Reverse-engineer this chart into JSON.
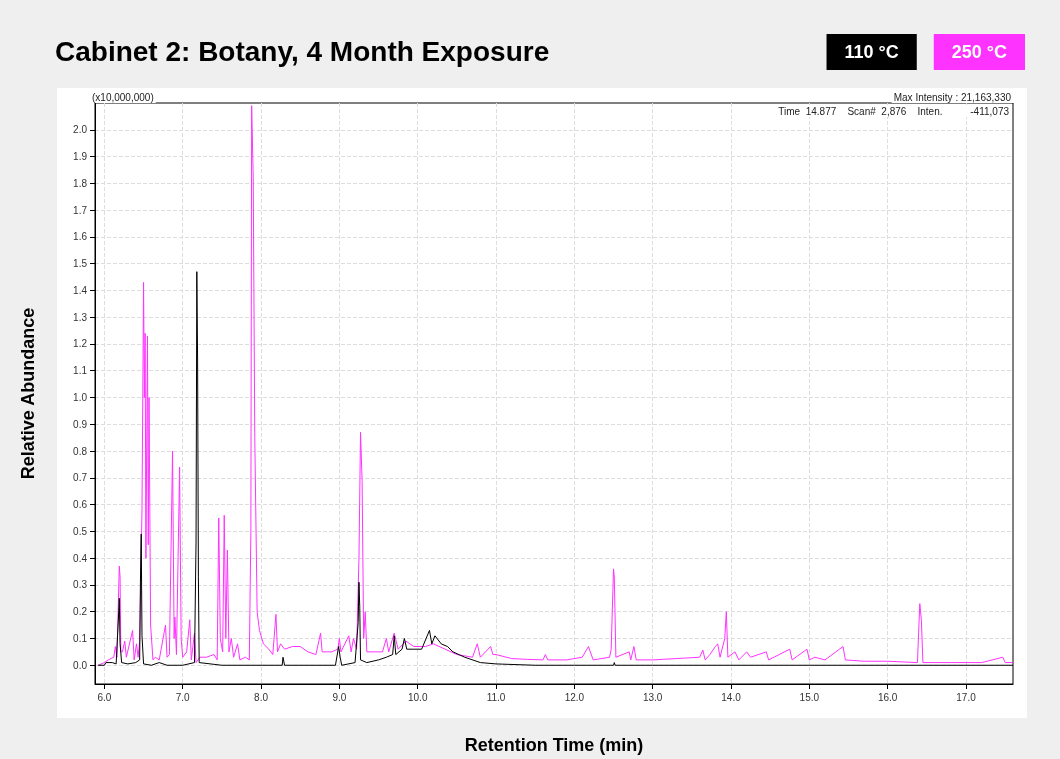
{
  "chart_data": {
    "type": "line",
    "title": "Cabinet 2: Botany, 4 Month Exposure",
    "xlabel": "Retention Time (min)",
    "ylabel": "Relative Abundance",
    "annotations": [
      "(x10,000,000)",
      "Max Intensity : 21,163,330",
      "Time  14.877    Scan#  2,876    Inten.          -411,073"
    ],
    "xlim": [
      5.88,
      17.6
    ],
    "ylim": [
      -0.07,
      2.1
    ],
    "xticks": [
      {
        "value": 6,
        "label": "6.0"
      },
      {
        "value": 7,
        "label": "7.0"
      },
      {
        "value": 8,
        "label": "8.0"
      },
      {
        "value": 9,
        "label": "9.0"
      },
      {
        "value": 10,
        "label": "10.0"
      },
      {
        "value": 11,
        "label": "11.0"
      },
      {
        "value": 12,
        "label": "12.0"
      },
      {
        "value": 13,
        "label": "13.0"
      },
      {
        "value": 14,
        "label": "14.0"
      },
      {
        "value": 15,
        "label": "15.0"
      },
      {
        "value": 16,
        "label": "16.0"
      },
      {
        "value": 17,
        "label": "17.0"
      }
    ],
    "yticks": [
      {
        "value": 0,
        "label": "0.0"
      },
      {
        "value": 0.1,
        "label": "0.1"
      },
      {
        "value": 0.2,
        "label": "0.2"
      },
      {
        "value": 0.3,
        "label": "0.3"
      },
      {
        "value": 0.4,
        "label": "0.4"
      },
      {
        "value": 0.5,
        "label": "0.5"
      },
      {
        "value": 0.6,
        "label": "0.6"
      },
      {
        "value": 0.7,
        "label": "0.7"
      },
      {
        "value": 0.8,
        "label": "0.8"
      },
      {
        "value": 0.9,
        "label": "0.9"
      },
      {
        "value": 1,
        "label": "1.0"
      },
      {
        "value": 1.1,
        "label": "1.1"
      },
      {
        "value": 1.2,
        "label": "1.2"
      },
      {
        "value": 1.3,
        "label": "1.3"
      },
      {
        "value": 1.4,
        "label": "1.4"
      },
      {
        "value": 1.5,
        "label": "1.5"
      },
      {
        "value": 1.6,
        "label": "1.6"
      },
      {
        "value": 1.7,
        "label": "1.7"
      },
      {
        "value": 1.8,
        "label": "1.8"
      },
      {
        "value": 1.9,
        "label": "1.9"
      },
      {
        "value": 2,
        "label": "2.0"
      }
    ],
    "grid": true,
    "legend": "top right",
    "marker": "none",
    "line_style": "solid",
    "series": [
      {
        "name": "110 °C",
        "color": "#000000",
        "x": [
          5.92,
          6.0,
          6.02,
          6.1,
          6.15,
          6.18,
          6.19,
          6.2,
          6.22,
          6.3,
          6.4,
          6.45,
          6.46,
          6.47,
          6.48,
          6.5,
          6.6,
          6.7,
          6.8,
          7.0,
          7.15,
          7.17,
          7.18,
          7.19,
          7.2,
          7.21,
          7.5,
          8.0,
          8.27,
          8.28,
          8.3,
          8.95,
          8.99,
          9.01,
          9.03,
          9.2,
          9.24,
          9.25,
          9.26,
          9.27,
          9.35,
          9.5,
          9.6,
          9.68,
          9.7,
          9.72,
          9.8,
          9.83,
          9.86,
          9.95,
          10.05,
          10.15,
          10.18,
          10.22,
          10.3,
          10.38,
          10.45,
          10.6,
          10.8,
          11.0,
          11.5,
          12.0,
          12.5,
          12.51,
          12.52,
          13.0,
          14.0,
          15.0,
          16.0,
          17.0,
          17.6
        ],
        "values": [
          0,
          0,
          0.01,
          0.01,
          0.005,
          0.18,
          0.25,
          0.08,
          0.01,
          0.005,
          0.01,
          0.02,
          0.31,
          0.49,
          0.11,
          0.005,
          0,
          0.01,
          0,
          0,
          0.01,
          0.46,
          1.47,
          1.14,
          0.33,
          0.01,
          0,
          0,
          0,
          0.03,
          0,
          0,
          0.07,
          0.03,
          0,
          0.01,
          0.16,
          0.31,
          0.22,
          0.02,
          0.01,
          0.02,
          0.03,
          0.04,
          0.11,
          0.04,
          0.06,
          0.1,
          0.06,
          0.06,
          0.06,
          0.13,
          0.08,
          0.11,
          0.08,
          0.07,
          0.05,
          0.03,
          0.01,
          0.005,
          0,
          0,
          0,
          0.01,
          0,
          0,
          0,
          0,
          0,
          0,
          0
        ]
      },
      {
        "name": "250 °C",
        "color": "#ff33ff",
        "x": [
          5.92,
          6.0,
          6.05,
          6.12,
          6.14,
          6.16,
          6.19,
          6.2,
          6.21,
          6.23,
          6.26,
          6.28,
          6.36,
          6.38,
          6.41,
          6.43,
          6.45,
          6.48,
          6.5,
          6.51,
          6.52,
          6.53,
          6.55,
          6.56,
          6.57,
          6.59,
          6.62,
          6.65,
          6.7,
          6.78,
          6.8,
          6.83,
          6.87,
          6.89,
          6.9,
          6.92,
          6.96,
          6.98,
          7.0,
          7.05,
          7.09,
          7.11,
          7.15,
          7.17,
          7.22,
          7.3,
          7.4,
          7.44,
          7.46,
          7.48,
          7.51,
          7.53,
          7.55,
          7.57,
          7.59,
          7.62,
          7.65,
          7.7,
          7.73,
          7.8,
          7.85,
          7.87,
          7.88,
          7.9,
          7.92,
          7.95,
          7.98,
          8.03,
          8.1,
          8.15,
          8.19,
          8.21,
          8.25,
          8.3,
          8.4,
          8.5,
          8.6,
          8.7,
          8.76,
          8.78,
          8.9,
          8.98,
          9.0,
          9.02,
          9.12,
          9.15,
          9.18,
          9.22,
          9.25,
          9.27,
          9.29,
          9.31,
          9.33,
          9.35,
          9.45,
          9.55,
          9.6,
          9.63,
          9.7,
          9.75,
          9.85,
          9.95,
          10.1,
          10.2,
          10.35,
          10.5,
          10.7,
          10.76,
          10.8,
          10.93,
          10.96,
          11.0,
          11.2,
          11.4,
          11.6,
          11.63,
          11.66,
          11.9,
          12.1,
          12.18,
          12.24,
          12.45,
          12.47,
          12.5,
          12.51,
          12.53,
          12.7,
          12.72,
          12.76,
          12.79,
          13.0,
          13.3,
          13.6,
          13.64,
          13.67,
          13.73,
          13.8,
          13.83,
          13.86,
          13.92,
          13.94,
          13.96,
          14.05,
          14.1,
          14.2,
          14.25,
          14.45,
          14.48,
          14.75,
          14.78,
          14.97,
          15.0,
          15.07,
          15.2,
          15.43,
          15.46,
          15.7,
          16.0,
          16.38,
          16.41,
          16.43,
          16.45,
          16.8,
          17.2,
          17.47,
          17.5,
          17.6
        ],
        "values": [
          0,
          0.01,
          0.02,
          0.03,
          0.07,
          0.03,
          0.37,
          0.33,
          0.05,
          0.05,
          0.09,
          0.03,
          0.13,
          0.02,
          0.08,
          0.03,
          0.09,
          0.58,
          1.43,
          1.0,
          1.24,
          0.4,
          1.23,
          0.45,
          1.0,
          0.15,
          0.02,
          0.03,
          0.02,
          0.15,
          0.03,
          0.04,
          0.8,
          0.1,
          0.18,
          0.04,
          0.74,
          0.1,
          0.03,
          0.05,
          0.17,
          0.02,
          0.12,
          0.01,
          0.03,
          0.03,
          0.04,
          0.02,
          0.55,
          0.1,
          0.05,
          0.56,
          0.1,
          0.43,
          0.05,
          0.1,
          0.03,
          0.08,
          0.02,
          0.03,
          0.02,
          0.5,
          2.09,
          1.82,
          0.85,
          0.2,
          0.13,
          0.08,
          0.06,
          0.04,
          0.19,
          0.05,
          0.08,
          0.06,
          0.07,
          0.07,
          0.05,
          0.04,
          0.12,
          0.05,
          0.05,
          0.06,
          0.1,
          0.05,
          0.11,
          0.05,
          0.1,
          0.06,
          0.4,
          0.87,
          0.69,
          0.1,
          0.2,
          0.05,
          0.05,
          0.05,
          0.1,
          0.05,
          0.12,
          0.06,
          0.09,
          0.07,
          0.07,
          0.08,
          0.06,
          0.04,
          0.03,
          0.08,
          0.03,
          0.07,
          0.04,
          0.04,
          0.025,
          0.022,
          0.02,
          0.04,
          0.02,
          0.02,
          0.03,
          0.07,
          0.02,
          0.03,
          0.06,
          0.36,
          0.33,
          0.03,
          0.05,
          0.02,
          0.07,
          0.02,
          0.02,
          0.025,
          0.03,
          0.057,
          0.02,
          0.04,
          0.07,
          0.08,
          0.03,
          0.1,
          0.2,
          0.03,
          0.05,
          0.02,
          0.05,
          0.03,
          0.05,
          0.02,
          0.06,
          0.02,
          0.06,
          0.02,
          0.03,
          0.02,
          0.07,
          0.02,
          0.015,
          0.015,
          0.01,
          0.23,
          0.17,
          0.01,
          0.01,
          0.01,
          0.03,
          0.01,
          0.01
        ]
      }
    ]
  }
}
